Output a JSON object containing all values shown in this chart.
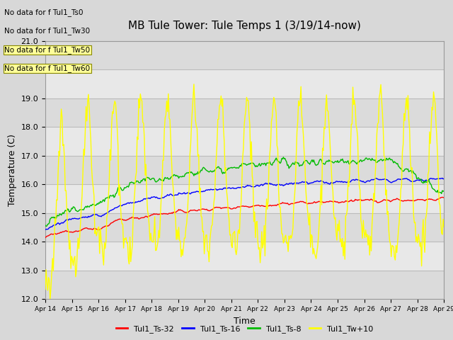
{
  "title": "MB Tule Tower: Tule Temps 1 (3/19/14-now)",
  "xlabel": "Time",
  "ylabel": "Temperature (C)",
  "ylim": [
    12.0,
    21.0
  ],
  "yticks": [
    12.0,
    13.0,
    14.0,
    15.0,
    16.0,
    17.0,
    18.0,
    19.0,
    20.0,
    21.0
  ],
  "xtick_labels": [
    "Apr 14",
    "Apr 15",
    "Apr 16",
    "Apr 17",
    "Apr 18",
    "Apr 19",
    "Apr 20",
    "Apr 21",
    "Apr 22",
    "Apr 23",
    "Apr 24",
    "Apr 25",
    "Apr 26",
    "Apr 27",
    "Apr 28",
    "Apr 29"
  ],
  "no_data_texts": [
    "No data for f Tul1_Ts0",
    "No data for f Tul1_Tw30",
    "No data for f Tul1_Tw50",
    "No data for f Tul1_Tw60"
  ],
  "legend_entries": [
    "Tul1_Ts-32",
    "Tul1_Ts-16",
    "Tul1_Ts-8",
    "Tul1_Tw+10"
  ],
  "legend_colors": [
    "#ff0000",
    "#0000ff",
    "#00bb00",
    "#ffff00"
  ],
  "background_color": "#d8d8d8",
  "plot_bg_color": "#e8e8e8",
  "series_colors": [
    "#ff0000",
    "#0000ff",
    "#00bb00",
    "#ffff00"
  ],
  "title_fontsize": 11,
  "label_fontsize": 9,
  "tick_fontsize": 8
}
